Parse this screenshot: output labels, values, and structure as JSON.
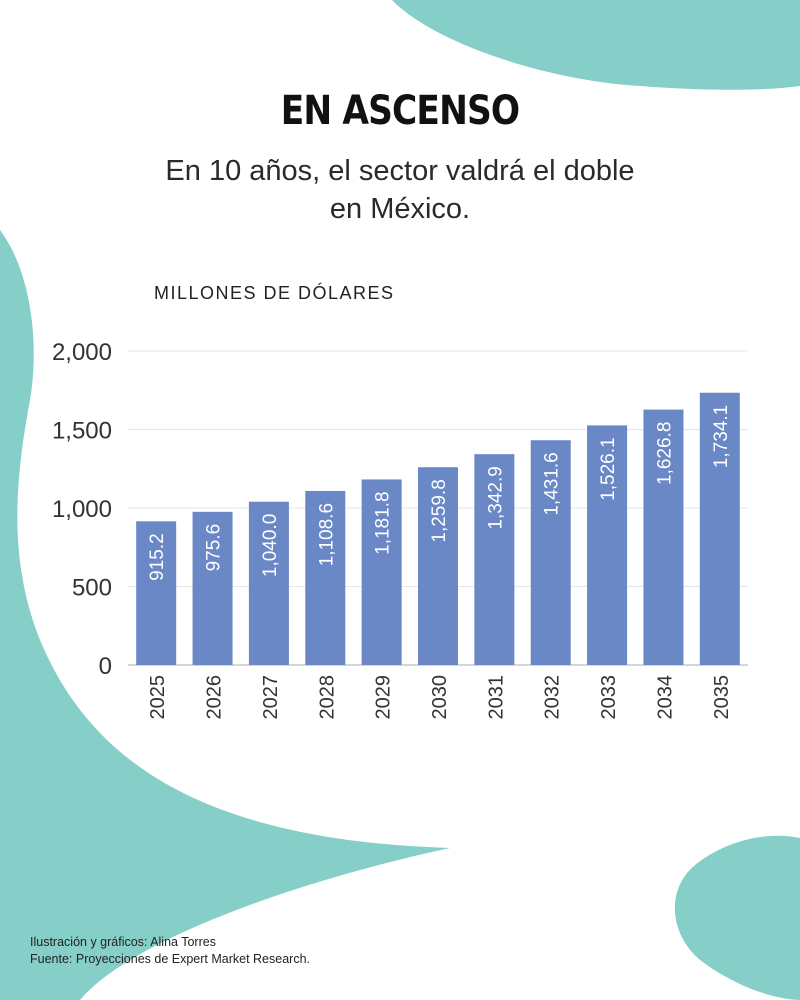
{
  "header": {
    "title": "EN ASCENSO",
    "subtitle_line1": "En 10 años, el sector valdrá el doble",
    "subtitle_line2": "en México."
  },
  "chart_data": {
    "type": "bar",
    "ylabel": "MILLONES DE DÓLARES",
    "categories": [
      "2025",
      "2026",
      "2027",
      "2028",
      "2029",
      "2030",
      "2031",
      "2032",
      "2033",
      "2034",
      "2035"
    ],
    "values": [
      915.2,
      975.6,
      1040.0,
      1108.6,
      1181.8,
      1259.8,
      1342.9,
      1431.6,
      1526.1,
      1626.8,
      1734.1
    ],
    "value_labels": [
      "915.2",
      "975.6",
      "1,040.0",
      "1,108.6",
      "1,181.8",
      "1,259.8",
      "1,342.9",
      "1,431.6",
      "1,526.1",
      "1,626.8",
      "1,734.1"
    ],
    "ylim": [
      0,
      2000
    ],
    "yticks": [
      0,
      500,
      1000,
      1500,
      2000
    ],
    "ytick_labels": [
      "0",
      "500",
      "1,000",
      "1,500",
      "2,000"
    ],
    "grid": true,
    "bar_color": "#6a87c6"
  },
  "credits": {
    "line1": "Ilustración y gráficos: Alina Torres",
    "line2": "Fuente: Proyecciones de Expert Market Research."
  },
  "colors": {
    "accent": "#86cfc8",
    "background": "#ffffff"
  }
}
